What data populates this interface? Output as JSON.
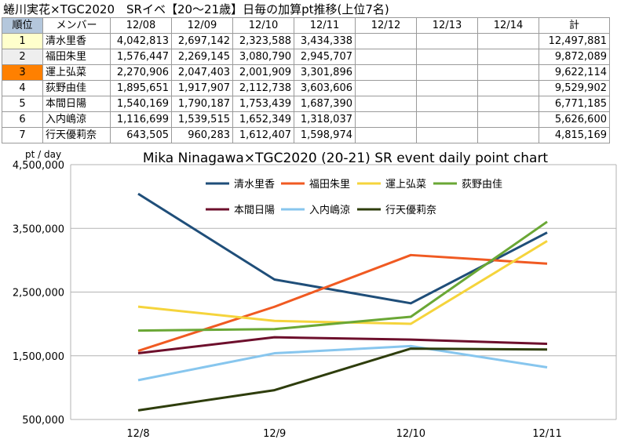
{
  "table": {
    "title": "蜷川実花×TGC2020　SRイベ【20～21歳】日毎の加算pt推移(上位7名)",
    "headers": [
      "順位",
      "メンバー",
      "12/08",
      "12/09",
      "12/10",
      "12/11",
      "12/12",
      "12/13",
      "12/14",
      "計"
    ],
    "rows": [
      {
        "rank": "1",
        "name": "清水里香",
        "d1": "4,042,813",
        "d2": "2,697,142",
        "d3": "2,323,588",
        "d4": "3,434,338",
        "d5": "",
        "d6": "",
        "d7": "",
        "total": "12,497,881"
      },
      {
        "rank": "2",
        "name": "福田朱里",
        "d1": "1,576,447",
        "d2": "2,269,145",
        "d3": "3,080,790",
        "d4": "2,945,707",
        "d5": "",
        "d6": "",
        "d7": "",
        "total": "9,872,089"
      },
      {
        "rank": "3",
        "name": "運上弘菜",
        "d1": "2,270,906",
        "d2": "2,047,403",
        "d3": "2,001,909",
        "d4": "3,301,896",
        "d5": "",
        "d6": "",
        "d7": "",
        "total": "9,622,114"
      },
      {
        "rank": "4",
        "name": "荻野由佳",
        "d1": "1,895,651",
        "d2": "1,917,907",
        "d3": "2,112,738",
        "d4": "3,603,606",
        "d5": "",
        "d6": "",
        "d7": "",
        "total": "9,529,902"
      },
      {
        "rank": "5",
        "name": "本間日陽",
        "d1": "1,540,169",
        "d2": "1,790,187",
        "d3": "1,753,439",
        "d4": "1,687,390",
        "d5": "",
        "d6": "",
        "d7": "",
        "total": "6,771,185"
      },
      {
        "rank": "6",
        "name": "入内嶋涼",
        "d1": "1,116,699",
        "d2": "1,539,515",
        "d3": "1,652,349",
        "d4": "1,318,037",
        "d5": "",
        "d6": "",
        "d7": "",
        "total": "5,626,600"
      },
      {
        "rank": "7",
        "name": "行天優莉奈",
        "d1": "643,505",
        "d2": "960,283",
        "d3": "1,612,407",
        "d4": "1,598,974",
        "d5": "",
        "d6": "",
        "d7": "",
        "total": "4,815,169"
      }
    ]
  },
  "colors": {
    "rank1": "#ffffcc",
    "rank2": "#eeeeee",
    "rank3": "#ff8000",
    "rank_header": "#b4c7dc"
  },
  "chart_data": {
    "type": "line",
    "title": "Mika Ninagawa×TGC2020 (20-21) SR event daily point chart",
    "ylabel": "pt / day",
    "xlabel": "",
    "categories": [
      "12/8",
      "12/9",
      "12/10",
      "12/11"
    ],
    "ylim": [
      500000,
      4500000
    ],
    "yticks": [
      500000,
      1500000,
      2500000,
      3500000,
      4500000
    ],
    "ytick_labels": [
      "500,000",
      "1,500,000",
      "2,500,000",
      "3,500,000",
      "4,500,000"
    ],
    "grid": "horizontal",
    "legend": "top-right",
    "series": [
      {
        "name": "清水里香",
        "color": "#1f4e79",
        "values": [
          4042813,
          2697142,
          2323588,
          3434338
        ]
      },
      {
        "name": "福田朱里",
        "color": "#f05a22",
        "values": [
          1576447,
          2269145,
          3080790,
          2945707
        ]
      },
      {
        "name": "運上弘菜",
        "color": "#f5d43c",
        "values": [
          2270906,
          2047403,
          2001909,
          3301896
        ]
      },
      {
        "name": "荻野由佳",
        "color": "#6aa735",
        "values": [
          1895651,
          1917907,
          2112738,
          3603606
        ]
      },
      {
        "name": "本間日陽",
        "color": "#6d0f2c",
        "values": [
          1540169,
          1790187,
          1753439,
          1687390
        ]
      },
      {
        "name": "入内嶋涼",
        "color": "#87c6ee",
        "values": [
          1116699,
          1539515,
          1652349,
          1318037
        ]
      },
      {
        "name": "行天優莉奈",
        "color": "#2e3d0c",
        "values": [
          643505,
          960283,
          1612407,
          1598974
        ]
      }
    ]
  }
}
